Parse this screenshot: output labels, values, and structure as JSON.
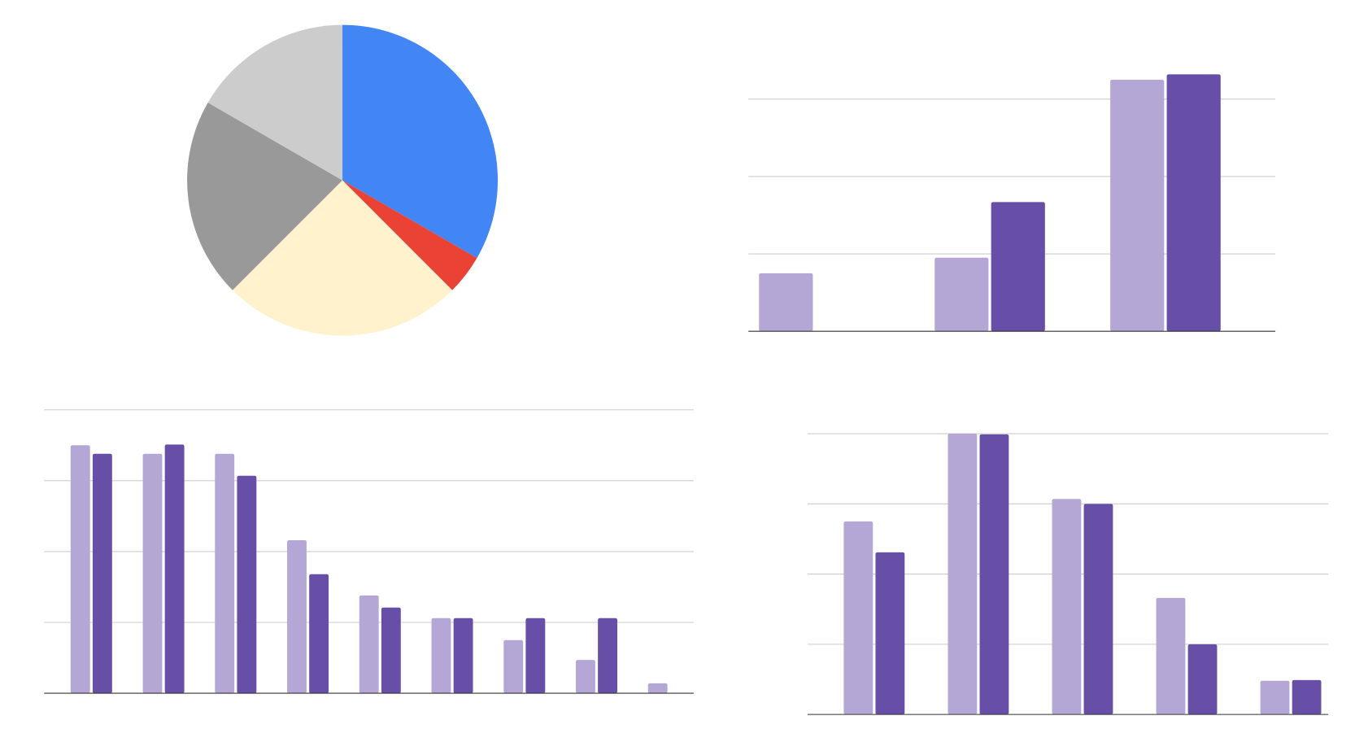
{
  "chart_data": [
    {
      "type": "pie",
      "values": [
        8,
        1,
        6,
        5,
        4
      ],
      "colors": [
        "#4285f4",
        "#ea4335",
        "#fff2cc",
        "#999999",
        "#cccccc"
      ]
    },
    {
      "type": "bar",
      "categories": [
        null,
        null,
        null
      ],
      "series": [
        {
          "color": "#b4a7d6",
          "values": [
            0.75,
            0.95,
            3.25
          ]
        },
        {
          "color": "#674ea7",
          "values": [
            null,
            1.67,
            3.32
          ]
        }
      ],
      "ylim": [
        0,
        3.4
      ],
      "yticks": [
        0,
        1,
        2,
        3
      ],
      "grid": true
    },
    {
      "type": "bar",
      "categories": [
        null,
        null,
        null,
        null,
        null,
        null,
        null,
        null,
        null
      ],
      "series": [
        {
          "color": "#b4a7d6",
          "values": [
            3.5,
            3.38,
            3.38,
            2.16,
            1.38,
            1.06,
            0.75,
            0.47,
            0.14
          ]
        },
        {
          "color": "#674ea7",
          "values": [
            3.38,
            3.51,
            3.07,
            1.68,
            1.21,
            1.06,
            1.06,
            1.06,
            null
          ]
        }
      ],
      "ylim": [
        0,
        4
      ],
      "yticks": [
        0,
        1,
        2,
        3,
        4
      ],
      "grid": true
    },
    {
      "type": "bar",
      "categories": [
        null,
        null,
        null,
        null,
        null
      ],
      "series": [
        {
          "color": "#b4a7d6",
          "values": [
            2.75,
            4.0,
            3.07,
            1.66,
            0.48
          ]
        },
        {
          "color": "#674ea7",
          "values": [
            2.31,
            3.99,
            3.0,
            1.0,
            0.49
          ]
        }
      ],
      "ylim": [
        0,
        4
      ],
      "yticks": [
        0,
        1,
        2,
        3,
        4
      ],
      "grid": true
    }
  ]
}
